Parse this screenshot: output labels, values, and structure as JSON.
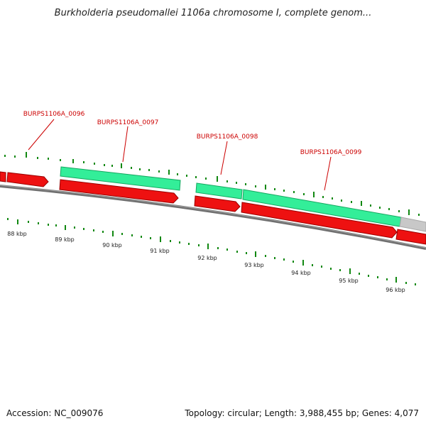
{
  "title": "Burkholderia pseudomallei 1106a chromosome I, complete genom...",
  "footer": {
    "accession": "Accession: NC_009076",
    "summary": "Topology: circular; Length: 3,988,455 bp; Genes: 4,077"
  },
  "colors": {
    "forward_feature": "#33ee99",
    "forward_feature_dark": "#15a860",
    "reverse_feature": "#ee1111",
    "reverse_feature_dark": "#990000",
    "other_feature": "#c8c8c8",
    "backbone": "#888888",
    "tick": "#118811",
    "gene_label": "#cc0000",
    "kbp_label": "#222222"
  },
  "kbp_labels": [
    "88 kbp",
    "89 kbp",
    "90 kbp",
    "91 kbp",
    "92 kbp",
    "93 kbp",
    "94 kbp",
    "95 kbp",
    "96 kbp"
  ],
  "gene_labels": [
    "BURPS1106A_0096",
    "BURPS1106A_0097",
    "BURPS1106A_0098",
    "BURPS1106A_0099"
  ]
}
